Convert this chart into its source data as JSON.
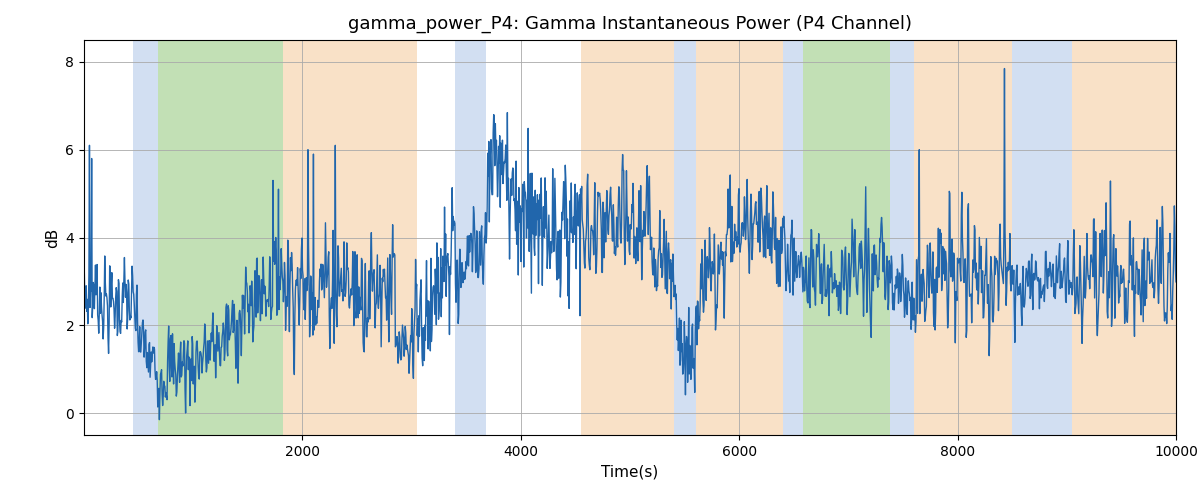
{
  "title": "gamma_power_P4: Gamma Instantaneous Power (P4 Channel)",
  "xlabel": "Time(s)",
  "ylabel": "dB",
  "xlim": [
    0,
    10000
  ],
  "ylim": [
    -0.5,
    8.5
  ],
  "yticks": [
    0,
    2,
    4,
    6,
    8
  ],
  "xticks": [
    2000,
    4000,
    6000,
    8000,
    10000
  ],
  "line_color": "#2166ac",
  "line_width": 1.0,
  "background_color": "#ffffff",
  "grid_color": "#aaaaaa",
  "bands": [
    {
      "start": 450,
      "end": 680,
      "color": "#aec6e8",
      "alpha": 0.55
    },
    {
      "start": 680,
      "end": 1820,
      "color": "#90c878",
      "alpha": 0.55
    },
    {
      "start": 1820,
      "end": 3050,
      "color": "#f5c999",
      "alpha": 0.55
    },
    {
      "start": 3400,
      "end": 3680,
      "color": "#aec6e8",
      "alpha": 0.55
    },
    {
      "start": 4550,
      "end": 5400,
      "color": "#f5c999",
      "alpha": 0.55
    },
    {
      "start": 5400,
      "end": 5600,
      "color": "#aec6e8",
      "alpha": 0.55
    },
    {
      "start": 5600,
      "end": 6400,
      "color": "#f5c999",
      "alpha": 0.55
    },
    {
      "start": 6400,
      "end": 6580,
      "color": "#aec6e8",
      "alpha": 0.55
    },
    {
      "start": 6580,
      "end": 7380,
      "color": "#90c878",
      "alpha": 0.55
    },
    {
      "start": 7380,
      "end": 7600,
      "color": "#aec6e8",
      "alpha": 0.55
    },
    {
      "start": 7600,
      "end": 8500,
      "color": "#f5c999",
      "alpha": 0.55
    },
    {
      "start": 8500,
      "end": 9050,
      "color": "#aec6e8",
      "alpha": 0.55
    },
    {
      "start": 9050,
      "end": 10000,
      "color": "#f5c999",
      "alpha": 0.55
    }
  ],
  "envelope_t": [
    0,
    100,
    200,
    300,
    380,
    450,
    500,
    600,
    680,
    800,
    1000,
    1200,
    1400,
    1600,
    1820,
    1900,
    2000,
    2100,
    2200,
    2300,
    2400,
    2500,
    2600,
    2700,
    2800,
    2900,
    3000,
    3050,
    3200,
    3400,
    3500,
    3680,
    3800,
    4000,
    4200,
    4400,
    4550,
    4700,
    4900,
    5100,
    5300,
    5400,
    5450,
    5500,
    5600,
    5700,
    5800,
    5900,
    6000,
    6100,
    6200,
    6400,
    6500,
    6580,
    6700,
    6900,
    7100,
    7300,
    7380,
    7500,
    7600,
    7800,
    8000,
    8200,
    8400,
    8500,
    8600,
    8700,
    8800,
    9000,
    9050,
    9200,
    9400,
    9600,
    9800,
    10000
  ],
  "envelope_v": [
    2.5,
    2.8,
    2.5,
    2.5,
    2.6,
    2.4,
    1.8,
    1.2,
    1.0,
    1.0,
    1.2,
    1.5,
    2.0,
    2.8,
    3.2,
    3.0,
    2.8,
    2.8,
    3.0,
    3.0,
    3.0,
    2.8,
    2.8,
    3.0,
    3.0,
    2.8,
    2.5,
    2.3,
    2.6,
    3.0,
    3.5,
    4.0,
    4.3,
    4.5,
    4.4,
    4.2,
    4.0,
    4.0,
    4.2,
    4.2,
    3.8,
    2.5,
    1.8,
    1.6,
    2.0,
    3.0,
    3.5,
    4.0,
    4.2,
    4.3,
    4.0,
    3.8,
    3.5,
    3.2,
    3.2,
    3.2,
    3.2,
    3.2,
    3.0,
    2.8,
    2.8,
    3.2,
    3.2,
    3.2,
    3.2,
    3.0,
    3.0,
    3.2,
    3.2,
    3.2,
    3.0,
    3.2,
    3.2,
    3.2,
    3.2,
    3.2
  ],
  "noise_base": 0.65,
  "noise_orange": 0.9,
  "noise_green": 0.7,
  "noise_blue": 0.6,
  "seed": 7,
  "n_points": 2000
}
